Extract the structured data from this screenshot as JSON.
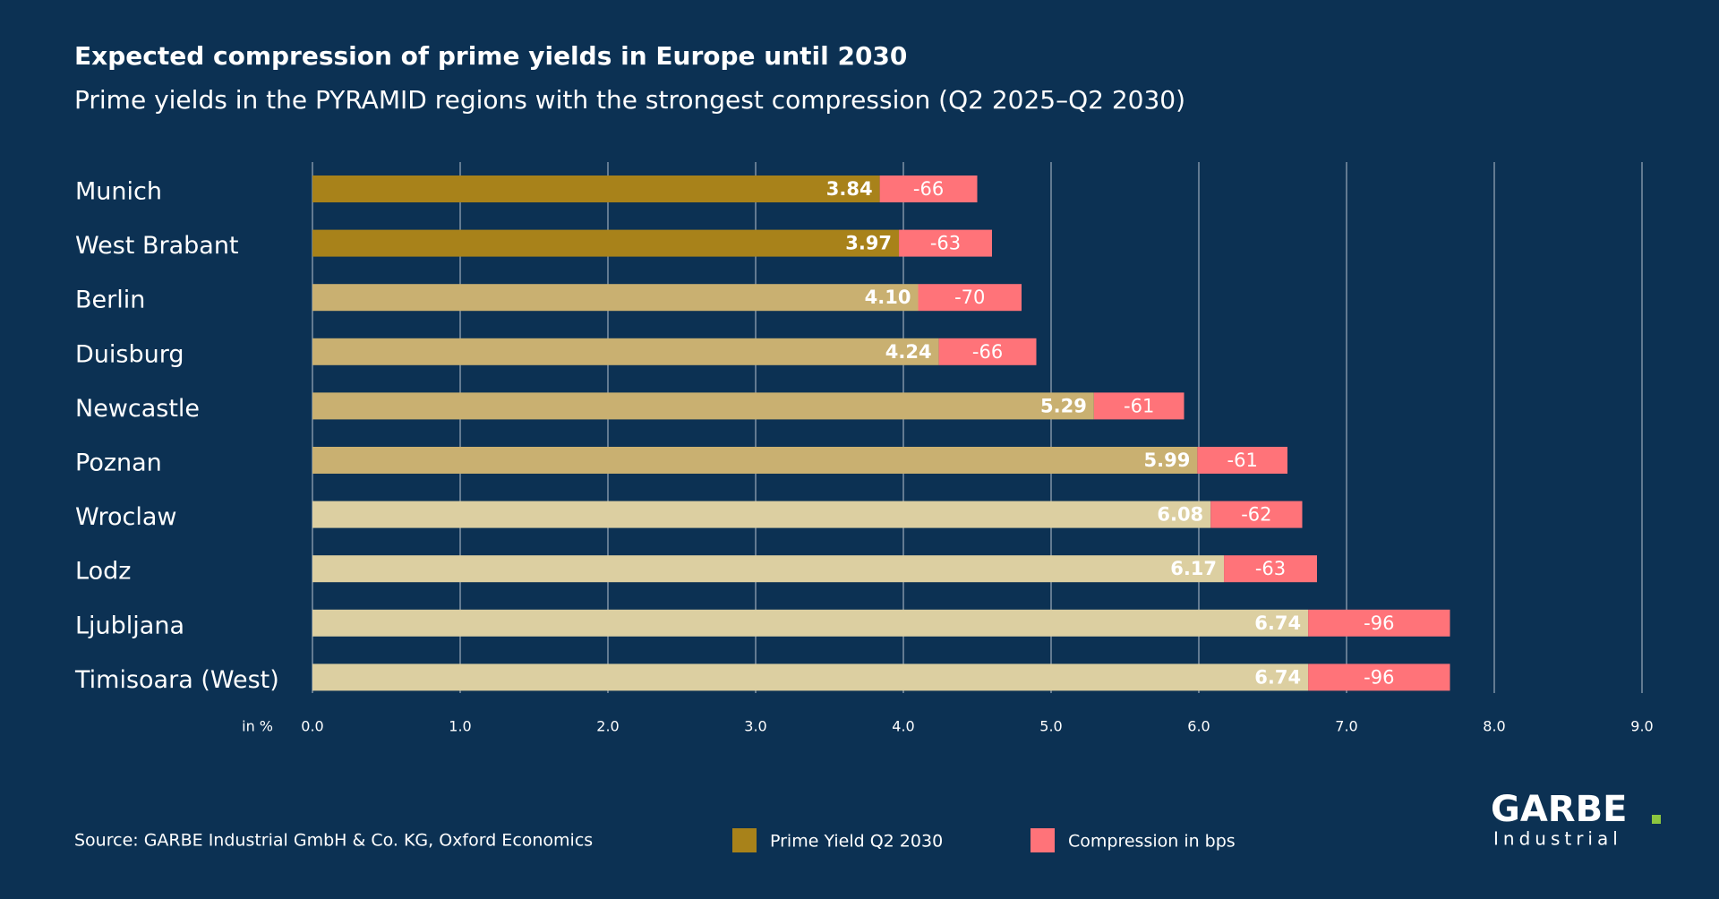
{
  "chart_data": {
    "type": "bar",
    "orientation": "horizontal",
    "title": "Expected compression of prime yields in Europe until 2030",
    "subtitle": "Prime yields in the PYRAMID regions with the strongest compression (Q2 2025–Q2 2030)",
    "categories": [
      "Munich",
      "West Brabant",
      "Berlin",
      "Duisburg",
      "Newcastle",
      "Poznan",
      "Wroclaw",
      "Lodz",
      "Ljubljana",
      "Timisoara (West)"
    ],
    "series": [
      {
        "name": "Prime Yield Q2 2030",
        "color": "#a8821a",
        "colors": [
          "#a8821a",
          "#a8821a",
          "#c9b071",
          "#c9b071",
          "#c9b071",
          "#c9b071",
          "#dccfa1",
          "#dccfa1",
          "#dccfa1",
          "#dccfa1"
        ],
        "values": [
          3.84,
          3.97,
          4.1,
          4.24,
          5.29,
          5.99,
          6.08,
          6.17,
          6.74,
          6.74
        ],
        "value_labels": [
          "3.84",
          "3.97",
          "4.10",
          "4.24",
          "5.29",
          "5.99",
          "6.08",
          "6.17",
          "6.74",
          "6.74"
        ]
      },
      {
        "name": "Compression in bps",
        "color": "#ff7379",
        "values": [
          -0.66,
          -0.63,
          -0.7,
          -0.66,
          -0.61,
          -0.61,
          -0.62,
          -0.63,
          -0.96,
          -0.96
        ],
        "value_labels": [
          "-66",
          "-63",
          "-70",
          "-66",
          "-61",
          "-61",
          "-62",
          "-63",
          "-96",
          "-96"
        ]
      }
    ],
    "x_label": "in %",
    "xlim": [
      0,
      9
    ],
    "xticks": [
      {
        "value": 0,
        "label": "0.0"
      },
      {
        "value": 1,
        "label": "1.0"
      },
      {
        "value": 2,
        "label": "2.0"
      },
      {
        "value": 3,
        "label": "3.0"
      },
      {
        "value": 4,
        "label": "4.0"
      },
      {
        "value": 5,
        "label": "5.0"
      },
      {
        "value": 6,
        "label": "6.0"
      },
      {
        "value": 7,
        "label": "7.0"
      },
      {
        "value": 8,
        "label": "8.0"
      },
      {
        "value": 9,
        "label": "9.0"
      }
    ],
    "grid": true,
    "source": "Source: GARBE Industrial GmbH & Co. KG, Oxford Economics"
  },
  "logo": {
    "name": "GARBE",
    "tagline": "Industrial"
  }
}
